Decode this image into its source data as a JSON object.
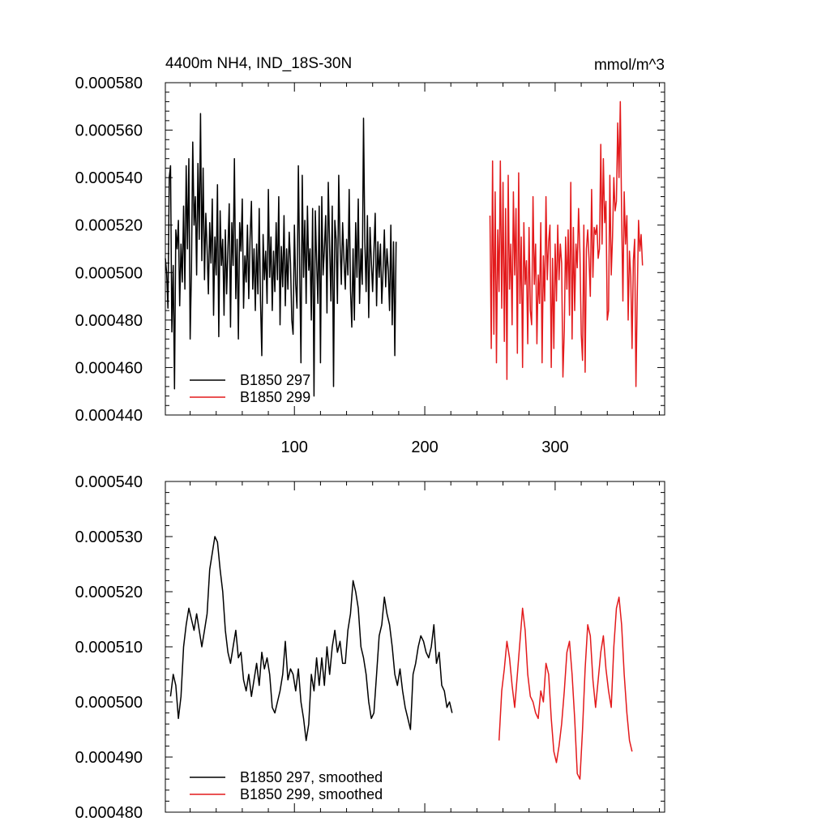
{
  "figure": {
    "title_left": "4400m NH4, IND_18S-30N",
    "title_right": "mmol/m^3"
  },
  "chart_data": [
    {
      "type": "line",
      "title": "4400m NH4, IND_18S-30N",
      "units": "mmol/m^3",
      "xlim": [
        1,
        384
      ],
      "ylim": [
        0.00044,
        0.00058
      ],
      "x_ticks": [
        100,
        200,
        300
      ],
      "x_tick_labels": [
        "100",
        "200",
        "300"
      ],
      "y_ticks": [
        0.00044,
        0.00046,
        0.00048,
        0.0005,
        0.00052,
        0.00054,
        0.00056,
        0.00058
      ],
      "y_tick_labels": [
        "0.000440",
        "0.000460",
        "0.000480",
        "0.000500",
        "0.000520",
        "0.000540",
        "0.000560",
        "0.000580"
      ],
      "legend": {
        "position": "bottom-left",
        "entries": [
          "B1850 297",
          "B1850 299"
        ]
      },
      "series": [
        {
          "name": "B1850 297",
          "color": "#000000",
          "x_start": 1,
          "x_step": 1,
          "values": [
            0.000506,
            0.0005,
            0.000485,
            0.00054,
            0.000545,
            0.000475,
            0.000503,
            0.000451,
            0.000518,
            0.00051,
            0.000522,
            0.000486,
            0.000512,
            0.000496,
            0.000528,
            0.000493,
            0.000545,
            0.00051,
            0.000548,
            0.000472,
            0.000501,
            0.000555,
            0.00052,
            0.000532,
            0.000499,
            0.000546,
            0.000514,
            0.000567,
            0.000505,
            0.000544,
            0.000497,
            0.000525,
            0.00051,
            0.000491,
            0.000521,
            0.000504,
            0.000531,
            0.000482,
            0.000515,
            0.000499,
            0.000537,
            0.000473,
            0.000526,
            0.000503,
            0.000514,
            0.000482,
            0.000518,
            0.000491,
            0.00051,
            0.000529,
            0.000477,
            0.000521,
            0.000503,
            0.000548,
            0.000489,
            0.000514,
            0.000472,
            0.000521,
            0.000509,
            0.000531,
            0.000485,
            0.000507,
            0.000496,
            0.00052,
            0.000489,
            0.000514,
            0.00053,
            0.000493,
            0.00051,
            0.000484,
            0.000512,
            0.000491,
            0.000527,
            0.000488,
            0.000465,
            0.000516,
            0.000497,
            0.000509,
            0.000487,
            0.000535,
            0.000498,
            0.000515,
            0.000484,
            0.000509,
            0.000492,
            0.000521,
            0.000497,
            0.000532,
            0.000478,
            0.000511,
            0.000494,
            0.000524,
            0.000486,
            0.00051,
            0.000493,
            0.000517,
            0.000504,
            0.00048,
            0.000474,
            0.00052,
            0.000495,
            0.000485,
            0.000545,
            0.000503,
            0.000462,
            0.000541,
            0.000498,
            0.000522,
            0.000487,
            0.000528,
            0.000501,
            0.00051,
            0.00048,
            0.000527,
            0.000448,
            0.000526,
            0.000505,
            0.000487,
            0.000528,
            0.000462,
            0.000532,
            0.000499,
            0.00051,
            0.000524,
            0.000483,
            0.000538,
            0.00051,
            0.000488,
            0.000528,
            0.000452,
            0.000522,
            0.000514,
            0.000487,
            0.000541,
            0.000512,
            0.000495,
            0.000521,
            0.000506,
            0.000493,
            0.000514,
            0.000499,
            0.000535,
            0.000493,
            0.000477,
            0.00051,
            0.00048,
            0.000521,
            0.000498,
            0.000531,
            0.000487,
            0.00051,
            0.000495,
            0.000565,
            0.000513,
            0.000492,
            0.000524,
            0.000481,
            0.000519,
            0.000505,
            0.000492,
            0.000509,
            0.000525,
            0.000486,
            0.000513,
            0.000498,
            0.000512,
            0.000487,
            0.000501,
            0.000518,
            0.000494,
            0.00051,
            0.000501,
            0.000484,
            0.00052,
            0.000478,
            0.000513,
            0.000465,
            0.000513
          ]
        },
        {
          "name": "B1850 299",
          "color": "#e31a1c",
          "x_start": 250,
          "x_step": 1,
          "values": [
            0.000524,
            0.000468,
            0.000547,
            0.000474,
            0.000534,
            0.000462,
            0.000518,
            0.000492,
            0.000547,
            0.000485,
            0.000538,
            0.000471,
            0.000527,
            0.000455,
            0.000541,
            0.000493,
            0.000512,
            0.000478,
            0.000534,
            0.000499,
            0.000527,
            0.000466,
            0.000542,
            0.000487,
            0.000515,
            0.00046,
            0.000521,
            0.000495,
            0.000505,
            0.00047,
            0.000519,
            0.000484,
            0.000478,
            0.000532,
            0.000495,
            0.000512,
            0.00047,
            0.000499,
            0.000487,
            0.000521,
            0.000462,
            0.000507,
            0.000488,
            0.000532,
            0.000497,
            0.000513,
            0.00052,
            0.00046,
            0.000506,
            0.000468,
            0.000512,
            0.000488,
            0.00052,
            0.000497,
            0.000512,
            0.000504,
            0.000456,
            0.000476,
            0.000515,
            0.000493,
            0.000518,
            0.000482,
            0.000538,
            0.000472,
            0.000519,
            0.000484,
            0.000512,
            0.000502,
            0.000527,
            0.000508,
            0.000474,
            0.000463,
            0.00052,
            0.000458,
            0.00051,
            0.000518,
            0.000506,
            0.00049,
            0.000535,
            0.000498,
            0.000519,
            0.000516,
            0.00052,
            0.000506,
            0.00051,
            0.000554,
            0.000512,
            0.000548,
            0.000521,
            0.00053,
            0.00048,
            0.000484,
            0.000541,
            0.000499,
            0.000515,
            0.00054,
            0.000526,
            0.00053,
            0.000563,
            0.00054,
            0.000572,
            0.000525,
            0.000488,
            0.000534,
            0.000512,
            0.000524,
            0.00048,
            0.000509,
            0.000498,
            0.000468,
            0.000505,
            0.000514,
            0.000452,
            0.00049,
            0.000522,
            0.000509,
            0.000516,
            0.000503
          ]
        }
      ]
    },
    {
      "type": "line",
      "title": "",
      "xlim": [
        1,
        384
      ],
      "ylim": [
        0.00048,
        0.00054
      ],
      "x_ticks": [
        100,
        200,
        300
      ],
      "y_ticks": [
        0.00048,
        0.00049,
        0.0005,
        0.00051,
        0.00052,
        0.00053,
        0.00054
      ],
      "y_tick_labels": [
        "0.000480",
        "0.000490",
        "0.000500",
        "0.000510",
        "0.000520",
        "0.000530",
        "0.000540"
      ],
      "legend": {
        "position": "bottom-left",
        "entries": [
          "B1850 297, smoothed",
          "B1850 299, smoothed"
        ]
      },
      "series": [
        {
          "name": "B1850 297, smoothed",
          "color": "#000000",
          "x_start": 5,
          "x_step": 2,
          "values": [
            0.000501,
            0.000505,
            0.000503,
            0.000497,
            0.000501,
            0.00051,
            0.000514,
            0.000517,
            0.000515,
            0.000513,
            0.000516,
            0.000513,
            0.00051,
            0.000513,
            0.000516,
            0.000524,
            0.000527,
            0.00053,
            0.000529,
            0.000524,
            0.00052,
            0.000513,
            0.000509,
            0.000507,
            0.00051,
            0.000513,
            0.000508,
            0.000509,
            0.000504,
            0.000502,
            0.000505,
            0.000501,
            0.000504,
            0.000507,
            0.000503,
            0.000509,
            0.000506,
            0.000508,
            0.000505,
            0.000499,
            0.000498,
            0.0005,
            0.000502,
            0.000505,
            0.000511,
            0.000504,
            0.000506,
            0.000505,
            0.000502,
            0.000506,
            0.0005,
            0.000497,
            0.000493,
            0.000496,
            0.000505,
            0.000502,
            0.000508,
            0.000503,
            0.000508,
            0.000503,
            0.00051,
            0.000505,
            0.00051,
            0.000513,
            0.000509,
            0.000511,
            0.000507,
            0.000507,
            0.000513,
            0.000516,
            0.000522,
            0.00052,
            0.000517,
            0.00051,
            0.000508,
            0.000505,
            0.0005,
            0.000497,
            0.000498,
            0.000505,
            0.000512,
            0.000514,
            0.000519,
            0.000516,
            0.000514,
            0.00051,
            0.000505,
            0.000503,
            0.000506,
            0.000502,
            0.000499,
            0.000497,
            0.000495,
            0.000505,
            0.000507,
            0.00051,
            0.000512,
            0.000511,
            0.000509,
            0.000508,
            0.00051,
            0.000514,
            0.000507,
            0.000509,
            0.000503,
            0.000502,
            0.000499,
            0.0005,
            0.000498
          ]
        },
        {
          "name": "B1850 299, smoothed",
          "color": "#e31a1c",
          "x_start": 257,
          "x_step": 2,
          "values": [
            0.000493,
            0.000502,
            0.000506,
            0.000511,
            0.000508,
            0.000503,
            0.000499,
            0.000505,
            0.000511,
            0.000517,
            0.000513,
            0.000505,
            0.000501,
            0.0005,
            0.000498,
            0.000497,
            0.000502,
            0.0005,
            0.000507,
            0.000505,
            0.000497,
            0.000491,
            0.000489,
            0.000492,
            0.000496,
            0.000502,
            0.000509,
            0.000511,
            0.000505,
            0.000497,
            0.000487,
            0.000486,
            0.000495,
            0.000506,
            0.000514,
            0.000512,
            0.000504,
            0.000499,
            0.000504,
            0.000509,
            0.000512,
            0.000506,
            0.000502,
            0.000499,
            0.00051,
            0.000517,
            0.000519,
            0.000514,
            0.000505,
            0.000498,
            0.000493,
            0.000491
          ]
        }
      ]
    }
  ]
}
